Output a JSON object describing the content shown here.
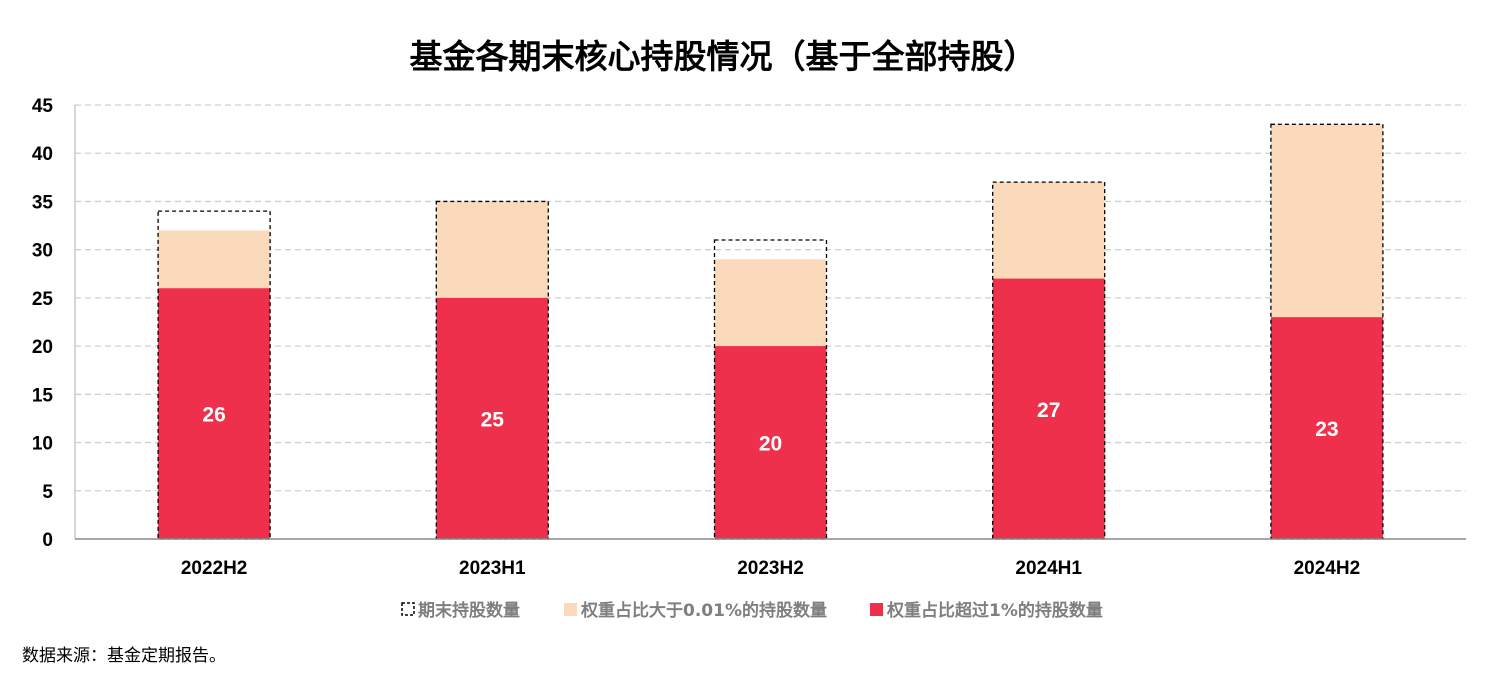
{
  "title": "基金各期末核心持股情况（基于全部持股）",
  "source_note": "数据来源：基金定期报告。",
  "chart_data": {
    "type": "bar",
    "title": "基金各期末核心持股情况（基于全部持股）",
    "categories": [
      "2022H2",
      "2023H1",
      "2023H2",
      "2024H1",
      "2024H2"
    ],
    "series": [
      {
        "name": "期末持股数量",
        "values": [
          34,
          35,
          31,
          37,
          43
        ],
        "color": "#000000",
        "style": "dashed-outline"
      },
      {
        "name": "权重占比大于0.01%的持股数量",
        "values": [
          32,
          35,
          29,
          37,
          43
        ],
        "color": "#FBDABC"
      },
      {
        "name": "权重占比超过1%的持股数量",
        "values": [
          26,
          25,
          20,
          27,
          23
        ],
        "color": "#EE304C"
      }
    ],
    "data_labels": [
      "26",
      "25",
      "20",
      "27",
      "23"
    ],
    "y_ticks": [
      0,
      5,
      10,
      15,
      20,
      25,
      30,
      35,
      40,
      45
    ],
    "ylim": [
      0,
      45
    ],
    "xlabel": "",
    "ylabel": "",
    "grid": true,
    "legend_position": "bottom"
  }
}
